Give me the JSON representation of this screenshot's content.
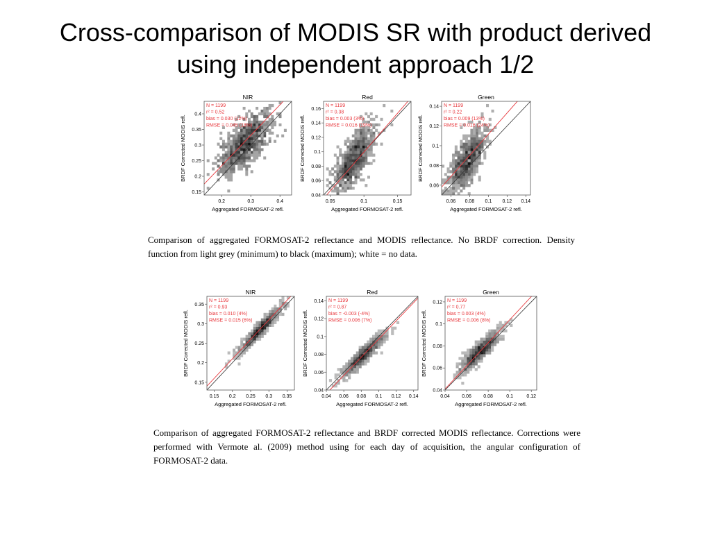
{
  "slide": {
    "title_line1": "Cross-comparison of MODIS SR with product derived",
    "title_line2": "using independent approach 1/2",
    "caption1": "Comparison of aggregated FORMOSAT-2 reflectance and MODIS reflectance. No BRDF correction. Density function from light grey (minimum) to black (maximum); white = no data.",
    "caption2": "Comparison of aggregated FORMOSAT-2 reflectance and BRDF corrected MODIS reflectance. Corrections were performed with Vermote al. (2009) method using for each day of acquisition, the angular configuration of FORMOSAT-2 data."
  },
  "colors": {
    "fit_line": "#e8383d",
    "identity_line": "#333333",
    "stats_text": "#e8383d",
    "density_light": "#d4d4d4",
    "density_dark": "#111111"
  },
  "chart_data": [
    {
      "type": "scatter",
      "title": "NIR",
      "xlabel": "Aggregated FORMOSAT-2 refl.",
      "ylabel": "BRDF Corrected MODIS refl.",
      "xlim": [
        0.14,
        0.44
      ],
      "ylim": [
        0.14,
        0.44
      ],
      "xticks": [
        0.2,
        0.3,
        0.4
      ],
      "xtick_labels": [
        "0.2",
        "0.3",
        "0.4"
      ],
      "yticks": [
        0.15,
        0.2,
        0.25,
        0.3,
        0.35,
        0.4
      ],
      "ytick_labels": [
        "0.15",
        "0.2",
        "0.25",
        "0.3",
        "0.35",
        "0.4"
      ],
      "stats": [
        "N = 1199",
        "r² = 0.52",
        "bias = 0.030 (12%)",
        "RMSE = 0.045 (18%)"
      ],
      "fit_line": [
        [
          0.14,
          0.175
        ],
        [
          0.44,
          0.468
        ]
      ],
      "identity_line": [
        [
          0.14,
          0.14
        ],
        [
          0.44,
          0.44
        ]
      ],
      "point_cloud": {
        "center": [
          0.28,
          0.305
        ],
        "spread_x": 0.045,
        "spread_y": 0.05,
        "n": 900
      }
    },
    {
      "type": "scatter",
      "title": "Red",
      "xlabel": "Aggregated FORMOSAT-2 refl.",
      "ylabel": "BRDF Corrected MODIS refl.",
      "xlim": [
        0.04,
        0.17
      ],
      "ylim": [
        0.04,
        0.17
      ],
      "xticks": [
        0.05,
        0.1,
        0.15
      ],
      "xtick_labels": [
        "0.05",
        "0.1",
        "0.15"
      ],
      "yticks": [
        0.04,
        0.06,
        0.08,
        0.1,
        0.12,
        0.14,
        0.16
      ],
      "ytick_labels": [
        "0.04",
        "0.06",
        "0.08",
        "0.1",
        "0.12",
        "0.14",
        "0.16"
      ],
      "stats": [
        "N = 1199",
        "r² = 0.38",
        "bias = 0.003 (3%)",
        "RMSE = 0.016 (19%)"
      ],
      "fit_line": [
        [
          0.04,
          0.035
        ],
        [
          0.17,
          0.175
        ]
      ],
      "identity_line": [
        [
          0.04,
          0.04
        ],
        [
          0.17,
          0.17
        ]
      ],
      "point_cloud": {
        "center": [
          0.085,
          0.09
        ],
        "spread_x": 0.015,
        "spread_y": 0.022,
        "n": 900
      }
    },
    {
      "type": "scatter",
      "title": "Green",
      "xlabel": "Aggregated FORMOSAT-2 refl.",
      "ylabel": "BRDF Corrected MODIS refl.",
      "xlim": [
        0.05,
        0.145
      ],
      "ylim": [
        0.05,
        0.145
      ],
      "xticks": [
        0.06,
        0.08,
        0.1,
        0.12,
        0.14
      ],
      "xtick_labels": [
        "0.06",
        "0.08",
        "0.1",
        "0.12",
        "0.14"
      ],
      "yticks": [
        0.06,
        0.08,
        0.1,
        0.12,
        0.14
      ],
      "ytick_labels": [
        "0.06",
        "0.08",
        "0.1",
        "0.12",
        "0.14"
      ],
      "stats": [
        "N = 1199",
        "r² = 0.22",
        "bias = 0.009 (13%)",
        "RMSE = 0.016 (24%)"
      ],
      "fit_line": [
        [
          0.05,
          0.058
        ],
        [
          0.145,
          0.16
        ]
      ],
      "identity_line": [
        [
          0.05,
          0.05
        ],
        [
          0.145,
          0.145
        ]
      ],
      "point_cloud": {
        "center": [
          0.077,
          0.085
        ],
        "spread_x": 0.01,
        "spread_y": 0.016,
        "n": 900
      }
    },
    {
      "type": "scatter",
      "title": "NIR",
      "xlabel": "Aggregated FORMOSAT-2 refl.",
      "ylabel": "BRDF Corrected MODIS refl.",
      "xlim": [
        0.13,
        0.37
      ],
      "ylim": [
        0.13,
        0.37
      ],
      "xticks": [
        0.15,
        0.2,
        0.25,
        0.3,
        0.35
      ],
      "xtick_labels": [
        "0.15",
        "0.2",
        "0.25",
        "0.3",
        "0.35"
      ],
      "yticks": [
        0.15,
        0.2,
        0.25,
        0.3,
        0.35
      ],
      "ytick_labels": [
        "0.15",
        "0.2",
        "0.25",
        "0.3",
        "0.35"
      ],
      "stats": [
        "N = 1199",
        "r² = 0.93",
        "bias = 0.010 (4%)",
        "RMSE = 0.015 (6%)"
      ],
      "fit_line": [
        [
          0.13,
          0.14
        ],
        [
          0.37,
          0.38
        ]
      ],
      "identity_line": [
        [
          0.13,
          0.13
        ],
        [
          0.37,
          0.37
        ]
      ],
      "point_cloud": {
        "center": [
          0.275,
          0.285
        ],
        "spread_x": 0.03,
        "spread_y": 0.03,
        "corr": 0.95,
        "n": 900
      }
    },
    {
      "type": "scatter",
      "title": "Red",
      "xlabel": "Aggregated FORMOSAT-2 refl.",
      "ylabel": "BRDF Corrected MODIS refl.",
      "xlim": [
        0.04,
        0.145
      ],
      "ylim": [
        0.04,
        0.145
      ],
      "xticks": [
        0.04,
        0.06,
        0.08,
        0.1,
        0.12,
        0.14
      ],
      "xtick_labels": [
        "0.04",
        "0.06",
        "0.08",
        "0.1",
        "0.12",
        "0.14"
      ],
      "yticks": [
        0.04,
        0.06,
        0.08,
        0.1,
        0.12,
        0.14
      ],
      "ytick_labels": [
        "0.04",
        "0.06",
        "0.08",
        "0.1",
        "0.12",
        "0.14"
      ],
      "stats": [
        "N = 1199",
        "r² = 0.87",
        "bias = -0.003 (-4%)",
        "RMSE = 0.006 (7%)"
      ],
      "fit_line": [
        [
          0.04,
          0.036
        ],
        [
          0.145,
          0.143
        ]
      ],
      "identity_line": [
        [
          0.04,
          0.04
        ],
        [
          0.145,
          0.145
        ]
      ],
      "point_cloud": {
        "center": [
          0.082,
          0.079
        ],
        "spread_x": 0.012,
        "spread_y": 0.012,
        "corr": 0.93,
        "n": 900
      }
    },
    {
      "type": "scatter",
      "title": "Green",
      "xlabel": "Aggregated FORMOSAT-2 refl.",
      "ylabel": "BRDF Corrected MODIS refl.",
      "xlim": [
        0.04,
        0.125
      ],
      "ylim": [
        0.04,
        0.125
      ],
      "xticks": [
        0.04,
        0.06,
        0.08,
        0.1,
        0.12
      ],
      "xtick_labels": [
        "0.04",
        "0.06",
        "0.08",
        "0.1",
        "0.12"
      ],
      "yticks": [
        0.04,
        0.06,
        0.08,
        0.1,
        0.12
      ],
      "ytick_labels": [
        "0.04",
        "0.06",
        "0.08",
        "0.1",
        "0.12"
      ],
      "stats": [
        "N = 1199",
        "r² = 0.77",
        "bias = 0.003 (4%)",
        "RMSE = 0.006 (8%)"
      ],
      "fit_line": [
        [
          0.04,
          0.041
        ],
        [
          0.125,
          0.13
        ]
      ],
      "identity_line": [
        [
          0.04,
          0.04
        ],
        [
          0.125,
          0.125
        ]
      ],
      "point_cloud": {
        "center": [
          0.072,
          0.075
        ],
        "spread_x": 0.009,
        "spread_y": 0.009,
        "corr": 0.88,
        "n": 900
      }
    }
  ]
}
